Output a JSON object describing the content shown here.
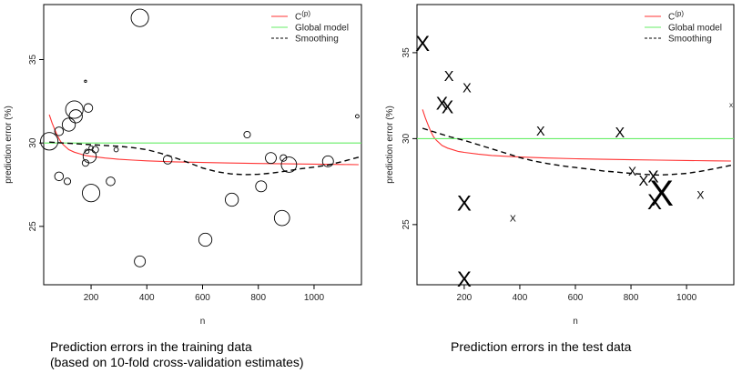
{
  "chart_data": [
    {
      "type": "scatter",
      "panel": "training",
      "title": "",
      "xlabel": "n",
      "ylabel": "prediction error (%)",
      "xlim": [
        30,
        1170
      ],
      "ylim": [
        21.5,
        38.3
      ],
      "xticks": [
        200,
        400,
        600,
        800,
        1000
      ],
      "yticks": [
        25,
        30,
        35
      ],
      "marker": "circle",
      "legend_position": "top-right",
      "legend": [
        {
          "label": "C",
          "superscript": "(p)",
          "style": "red-line",
          "color": "#ff3333"
        },
        {
          "label": "Global model",
          "style": "green-line",
          "color": "#66ee66"
        },
        {
          "label": "Smoothing",
          "style": "dashed-line",
          "color": "#000000"
        }
      ],
      "points": [
        {
          "x": 50,
          "y": 30.1,
          "size": 4
        },
        {
          "x": 85,
          "y": 30.7,
          "size": 2
        },
        {
          "x": 85,
          "y": 28.0,
          "size": 2
        },
        {
          "x": 115,
          "y": 27.7,
          "size": 1.5
        },
        {
          "x": 120,
          "y": 31.1,
          "size": 3
        },
        {
          "x": 140,
          "y": 32.0,
          "size": 4
        },
        {
          "x": 145,
          "y": 31.6,
          "size": 3
        },
        {
          "x": 180,
          "y": 33.7,
          "size": 0.5
        },
        {
          "x": 180,
          "y": 28.8,
          "size": 1.5
        },
        {
          "x": 185,
          "y": 29.5,
          "size": 1
        },
        {
          "x": 190,
          "y": 32.1,
          "size": 2
        },
        {
          "x": 195,
          "y": 29.2,
          "size": 3
        },
        {
          "x": 200,
          "y": 29.7,
          "size": 1
        },
        {
          "x": 200,
          "y": 27.0,
          "size": 4
        },
        {
          "x": 215,
          "y": 29.6,
          "size": 1.5
        },
        {
          "x": 270,
          "y": 27.7,
          "size": 2
        },
        {
          "x": 290,
          "y": 29.6,
          "size": 1
        },
        {
          "x": 375,
          "y": 37.5,
          "size": 4
        },
        {
          "x": 375,
          "y": 22.9,
          "size": 2.5
        },
        {
          "x": 475,
          "y": 29.0,
          "size": 2
        },
        {
          "x": 610,
          "y": 24.2,
          "size": 3
        },
        {
          "x": 705,
          "y": 26.6,
          "size": 3
        },
        {
          "x": 760,
          "y": 30.5,
          "size": 1.5
        },
        {
          "x": 810,
          "y": 27.4,
          "size": 2.5
        },
        {
          "x": 845,
          "y": 29.1,
          "size": 2.5
        },
        {
          "x": 885,
          "y": 25.5,
          "size": 3.5
        },
        {
          "x": 890,
          "y": 29.1,
          "size": 1.5
        },
        {
          "x": 910,
          "y": 28.7,
          "size": 3.5
        },
        {
          "x": 1050,
          "y": 28.9,
          "size": 2.5
        },
        {
          "x": 1155,
          "y": 31.6,
          "size": 0.8
        }
      ],
      "series": [
        {
          "name": "C(p)",
          "style": "solid",
          "color": "#ff3333",
          "x": [
            50,
            60,
            70,
            80,
            90,
            100,
            120,
            140,
            160,
            180,
            200,
            250,
            300,
            350,
            400,
            500,
            600,
            700,
            800,
            900,
            1000,
            1100,
            1160
          ],
          "y": [
            31.7,
            31.2,
            30.8,
            30.4,
            30.1,
            29.9,
            29.6,
            29.45,
            29.35,
            29.25,
            29.2,
            29.1,
            29.02,
            28.97,
            28.93,
            28.87,
            28.83,
            28.8,
            28.77,
            28.75,
            28.73,
            28.71,
            28.7
          ]
        },
        {
          "name": "Global model",
          "style": "solid",
          "color": "#66ee66",
          "x": [
            30,
            1170
          ],
          "y": [
            30.0,
            30.0
          ]
        },
        {
          "name": "Smoothing",
          "style": "dashed",
          "color": "#000000",
          "x": [
            50,
            100,
            150,
            200,
            250,
            300,
            350,
            400,
            450,
            500,
            550,
            600,
            650,
            700,
            750,
            800,
            850,
            900,
            950,
            1000,
            1050,
            1100,
            1160
          ],
          "y": [
            30.05,
            30.0,
            29.95,
            29.9,
            29.85,
            29.8,
            29.72,
            29.6,
            29.38,
            29.12,
            28.82,
            28.5,
            28.28,
            28.15,
            28.1,
            28.12,
            28.2,
            28.32,
            28.45,
            28.55,
            28.68,
            28.88,
            29.15
          ]
        }
      ]
    },
    {
      "type": "scatter",
      "panel": "test",
      "title": "",
      "xlabel": "n",
      "ylabel": "prediction error (%)",
      "xlim": [
        30,
        1170
      ],
      "ylim": [
        21.5,
        37.8
      ],
      "xticks": [
        200,
        400,
        600,
        800,
        1000
      ],
      "yticks": [
        25,
        30,
        35
      ],
      "marker": "X",
      "legend_position": "top-right",
      "legend": [
        {
          "label": "C",
          "superscript": "(p)",
          "style": "red-line",
          "color": "#ff3333"
        },
        {
          "label": "Global model",
          "style": "green-line",
          "color": "#66ee66"
        },
        {
          "label": "Smoothing",
          "style": "dashed-line",
          "color": "#000000"
        }
      ],
      "points": [
        {
          "x": 50,
          "y": 35.5,
          "size": 3
        },
        {
          "x": 120,
          "y": 32.0,
          "size": 2.5
        },
        {
          "x": 140,
          "y": 31.8,
          "size": 2.5
        },
        {
          "x": 145,
          "y": 33.6,
          "size": 2
        },
        {
          "x": 200,
          "y": 26.2,
          "size": 3
        },
        {
          "x": 200,
          "y": 21.8,
          "size": 3
        },
        {
          "x": 210,
          "y": 32.9,
          "size": 1.8
        },
        {
          "x": 375,
          "y": 25.3,
          "size": 1.3
        },
        {
          "x": 475,
          "y": 30.4,
          "size": 1.8
        },
        {
          "x": 760,
          "y": 30.3,
          "size": 2
        },
        {
          "x": 805,
          "y": 28.1,
          "size": 1.7
        },
        {
          "x": 845,
          "y": 27.5,
          "size": 2
        },
        {
          "x": 880,
          "y": 27.8,
          "size": 2.3
        },
        {
          "x": 885,
          "y": 26.3,
          "size": 3
        },
        {
          "x": 910,
          "y": 26.8,
          "size": 5
        },
        {
          "x": 1050,
          "y": 26.7,
          "size": 1.5
        },
        {
          "x": 1160,
          "y": 31.9,
          "size": 0.8
        }
      ],
      "series": [
        {
          "name": "C(p)",
          "style": "solid",
          "color": "#ff3333",
          "x": [
            50,
            60,
            70,
            80,
            90,
            100,
            120,
            140,
            160,
            180,
            200,
            250,
            300,
            350,
            400,
            500,
            600,
            700,
            800,
            900,
            1000,
            1100,
            1160
          ],
          "y": [
            31.7,
            31.2,
            30.8,
            30.4,
            30.1,
            29.9,
            29.6,
            29.45,
            29.35,
            29.25,
            29.2,
            29.1,
            29.02,
            28.97,
            28.93,
            28.87,
            28.83,
            28.8,
            28.77,
            28.75,
            28.73,
            28.71,
            28.7
          ]
        },
        {
          "name": "Global model",
          "style": "solid",
          "color": "#66ee66",
          "x": [
            30,
            1170
          ],
          "y": [
            30.0,
            30.0
          ]
        },
        {
          "name": "Smoothing",
          "style": "dashed",
          "color": "#000000",
          "x": [
            50,
            100,
            150,
            200,
            250,
            300,
            350,
            400,
            450,
            500,
            550,
            600,
            650,
            700,
            750,
            800,
            850,
            900,
            950,
            1000,
            1050,
            1100,
            1160
          ],
          "y": [
            30.6,
            30.35,
            30.1,
            29.9,
            29.65,
            29.4,
            29.15,
            28.9,
            28.7,
            28.55,
            28.42,
            28.32,
            28.22,
            28.12,
            28.05,
            27.98,
            27.92,
            27.88,
            27.92,
            27.98,
            28.1,
            28.25,
            28.45
          ]
        }
      ]
    }
  ],
  "captions": {
    "training_line1": "Prediction errors in the training data",
    "training_line2": "(based on 10-fold cross-validation estimates)",
    "test": "Prediction errors in the test data"
  }
}
